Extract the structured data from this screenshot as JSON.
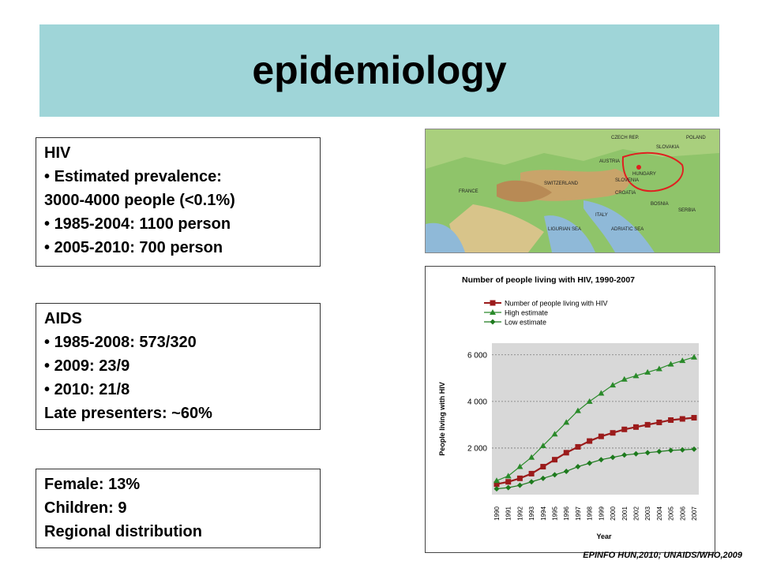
{
  "slide": {
    "title": "epidemiology"
  },
  "hiv": {
    "heading": "HIV",
    "items": [
      "Estimated prevalence:",
      "1985-2004: 1100 person",
      "2005-2010: 700 person"
    ],
    "prevalence_value": "3000-4000 people (<0.1%)"
  },
  "aids": {
    "heading": "AIDS",
    "items": [
      "1985-2008: 573/320",
      "2009: 23/9",
      "2010: 21/8"
    ],
    "late": "Late presenters: ~60%"
  },
  "other": {
    "lines": [
      "Female: 13%",
      "Children: 9",
      "Regional distribution"
    ]
  },
  "map": {
    "labels": [
      "CZECH REP.",
      "SLOVAKIA",
      "AUSTRIA",
      "HUNGARY",
      "FRANCE",
      "SWITZERLAND",
      "SLOVENIA",
      "CROATIA",
      "ITALY",
      "SERBIA",
      "BOSNIA",
      "POLAND",
      "LIGURIAN SEA",
      "ADRIATIC SEA"
    ]
  },
  "chart_data": {
    "type": "line",
    "title": "Number of people living with HIV, 1990-2007",
    "xlabel": "Year",
    "ylabel": "People living with HIV",
    "categories": [
      "1990",
      "1991",
      "1992",
      "1993",
      "1994",
      "1995",
      "1996",
      "1997",
      "1998",
      "1999",
      "2000",
      "2001",
      "2002",
      "2003",
      "2004",
      "2005",
      "2006",
      "2007"
    ],
    "ylim": [
      0,
      6500
    ],
    "yticks": [
      2000,
      4000,
      6000
    ],
    "ytick_labels": [
      "2 000",
      "4 000",
      "6 000"
    ],
    "grid": true,
    "legend_position": "top-left",
    "series": [
      {
        "name": "Number of people living with HIV",
        "color": "#9b1b1b",
        "marker": "square",
        "values": [
          450,
          550,
          700,
          900,
          1200,
          1500,
          1800,
          2050,
          2300,
          2500,
          2650,
          2800,
          2900,
          3000,
          3100,
          3200,
          3250,
          3300
        ]
      },
      {
        "name": "High estimate",
        "color": "#2a8a2a",
        "marker": "triangle",
        "values": [
          600,
          800,
          1200,
          1600,
          2100,
          2600,
          3100,
          3600,
          4000,
          4350,
          4700,
          4950,
          5100,
          5250,
          5400,
          5600,
          5750,
          5900
        ]
      },
      {
        "name": "Low estimate",
        "color": "#1d7a1d",
        "marker": "diamond",
        "values": [
          250,
          300,
          400,
          550,
          700,
          850,
          1000,
          1200,
          1350,
          1500,
          1600,
          1700,
          1750,
          1800,
          1850,
          1900,
          1920,
          1950
        ]
      }
    ]
  },
  "source": "EPINFO HUN,2010; UNAIDS/WHO,2009"
}
